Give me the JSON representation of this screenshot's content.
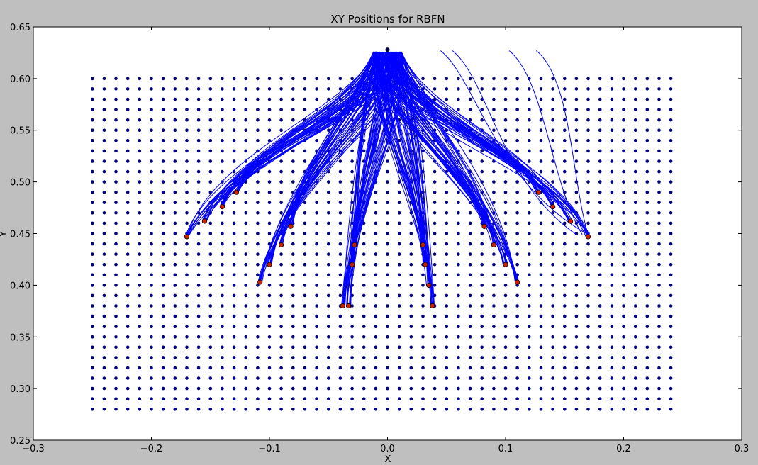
{
  "chart_data": {
    "type": "scatter",
    "title": "XY Positions for RBFN",
    "xlabel": "X",
    "ylabel": "Y",
    "xlim": [
      -0.3,
      0.3
    ],
    "ylim": [
      0.25,
      0.65
    ],
    "x_ticks": [
      -0.3,
      -0.2,
      -0.1,
      0.0,
      0.1,
      0.2,
      0.3
    ],
    "y_ticks": [
      0.25,
      0.3,
      0.35,
      0.4,
      0.45,
      0.5,
      0.55,
      0.6,
      0.65
    ],
    "x_tick_labels": [
      "−0.3",
      "−0.2",
      "−0.1",
      "0.0",
      "0.1",
      "0.2",
      "0.3"
    ],
    "y_tick_labels": [
      "0.25",
      "0.30",
      "0.35",
      "0.40",
      "0.45",
      "0.50",
      "0.55",
      "0.60",
      "0.65"
    ],
    "grid": false,
    "legend": "none",
    "grid_points": {
      "x_start": -0.25,
      "x_end": 0.24,
      "x_step": 0.01,
      "y_start": 0.28,
      "y_end": 0.6,
      "y_step": 0.01,
      "color": "#000080"
    },
    "start_point": [
      0.0,
      0.628
    ],
    "targets": [
      [
        -0.17,
        0.447
      ],
      [
        -0.155,
        0.462
      ],
      [
        -0.14,
        0.476
      ],
      [
        -0.128,
        0.49
      ],
      [
        -0.108,
        0.403
      ],
      [
        -0.1,
        0.42
      ],
      [
        -0.09,
        0.439
      ],
      [
        -0.082,
        0.457
      ],
      [
        -0.038,
        0.38
      ],
      [
        -0.033,
        0.38
      ],
      [
        -0.03,
        0.42
      ],
      [
        -0.028,
        0.439
      ],
      [
        0.03,
        0.439
      ],
      [
        0.032,
        0.42
      ],
      [
        0.035,
        0.4
      ],
      [
        0.038,
        0.38
      ],
      [
        0.082,
        0.457
      ],
      [
        0.09,
        0.439
      ],
      [
        0.1,
        0.42
      ],
      [
        0.11,
        0.403
      ],
      [
        0.128,
        0.49
      ],
      [
        0.14,
        0.476
      ],
      [
        0.155,
        0.462
      ],
      [
        0.17,
        0.447
      ]
    ],
    "trajectory_color": "#0000ff",
    "target_color": "#cc2200"
  }
}
